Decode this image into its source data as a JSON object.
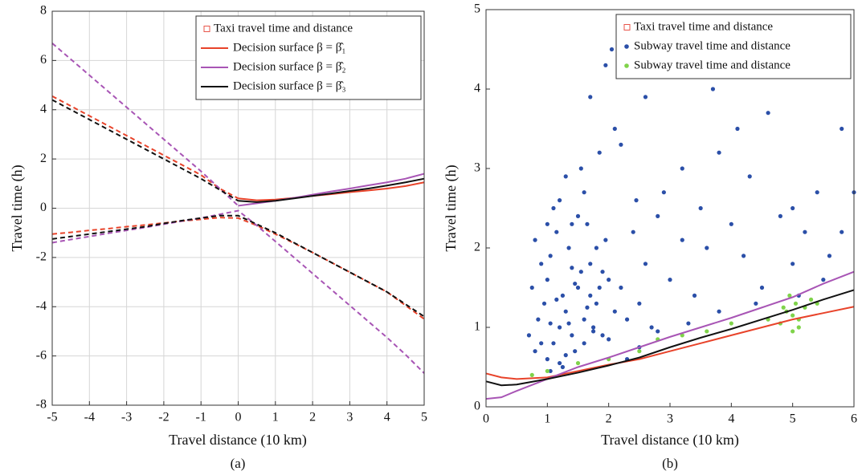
{
  "chart_data": [
    {
      "type": "line",
      "caption": "(a)",
      "xlabel": "Travel distance (10 km)",
      "ylabel": "Travel time (h)",
      "xlim": [
        -5,
        5
      ],
      "ylim": [
        -8,
        8
      ],
      "xticks": [
        -5,
        -4,
        -3,
        -2,
        -1,
        0,
        1,
        2,
        3,
        4,
        5
      ],
      "yticks": [
        -8,
        -6,
        -4,
        -2,
        0,
        2,
        4,
        6,
        8
      ],
      "grid": true,
      "legend": "upper right",
      "x": [
        -5,
        -4.5,
        -4,
        -3.5,
        -3,
        -2.5,
        -2,
        -1.5,
        -1,
        -0.5,
        0,
        0.5,
        1,
        1.5,
        2,
        2.5,
        3,
        3.5,
        4,
        4.5,
        5
      ],
      "series": [
        {
          "name": "Taxi travel time and distance",
          "color": "#e8544a",
          "marker": "square"
        },
        {
          "name": "Decision surface β = β̂₁",
          "color": "#e8432a",
          "upper": [
            4.55,
            4.15,
            3.75,
            3.35,
            2.95,
            2.55,
            2.15,
            1.75,
            1.35,
            0.8,
            0.4,
            0.32,
            0.35,
            0.42,
            0.5,
            0.57,
            0.65,
            0.72,
            0.8,
            0.9,
            1.05
          ],
          "lower": [
            -1.05,
            -0.98,
            -0.9,
            -0.83,
            -0.75,
            -0.68,
            -0.6,
            -0.52,
            -0.45,
            -0.38,
            -0.4,
            -0.7,
            -1.05,
            -1.42,
            -1.8,
            -2.2,
            -2.6,
            -3.0,
            -3.4,
            -3.95,
            -4.5
          ]
        },
        {
          "name": "Decision surface β = β̂₂",
          "color": "#a855b5",
          "upper": [
            6.7,
            6.05,
            5.4,
            4.75,
            4.1,
            3.45,
            2.8,
            2.15,
            1.5,
            0.8,
            0.1,
            0.2,
            0.3,
            0.42,
            0.55,
            0.68,
            0.8,
            0.93,
            1.05,
            1.2,
            1.4
          ],
          "lower": [
            -1.4,
            -1.27,
            -1.15,
            -1.02,
            -0.9,
            -0.78,
            -0.65,
            -0.52,
            -0.4,
            -0.25,
            -0.1,
            -0.7,
            -1.35,
            -2.0,
            -2.65,
            -3.3,
            -3.95,
            -4.6,
            -5.25,
            -5.95,
            -6.7
          ]
        },
        {
          "name": "Decision surface β = β̂₃",
          "color": "#111111",
          "upper": [
            4.4,
            4.0,
            3.6,
            3.2,
            2.8,
            2.4,
            2.0,
            1.6,
            1.2,
            0.75,
            0.3,
            0.25,
            0.3,
            0.4,
            0.5,
            0.6,
            0.7,
            0.8,
            0.92,
            1.05,
            1.2
          ],
          "lower": [
            -1.25,
            -1.15,
            -1.05,
            -0.95,
            -0.85,
            -0.75,
            -0.62,
            -0.5,
            -0.4,
            -0.3,
            -0.3,
            -0.65,
            -1.0,
            -1.4,
            -1.8,
            -2.2,
            -2.6,
            -3.0,
            -3.4,
            -3.9,
            -4.4
          ]
        }
      ]
    },
    {
      "type": "scatter",
      "caption": "(b)",
      "xlabel": "Travel distance (10 km)",
      "ylabel": "Travel time (h)",
      "xlim": [
        0,
        6
      ],
      "ylim": [
        0,
        5
      ],
      "xticks": [
        0,
        1,
        2,
        3,
        4,
        5,
        6
      ],
      "yticks": [
        0,
        1,
        2,
        3,
        4,
        5
      ],
      "grid": false,
      "legend": "upper right",
      "series": [
        {
          "name": "Taxi travel time and distance",
          "color": "#e8544a",
          "marker": "square"
        },
        {
          "name": "Subway travel time and distance",
          "color": "#2b4fa8",
          "marker": "dot",
          "x": [
            1.0,
            1.1,
            1.2,
            1.3,
            1.4,
            1.5,
            1.6,
            1.7,
            1.8,
            1.9,
            2.0,
            2.1,
            1.05,
            1.15,
            1.25,
            1.35,
            1.45,
            1.55,
            1.65,
            1.75,
            1.85,
            1.95,
            0.9,
            0.95,
            0.85,
            0.8,
            0.75,
            0.7,
            1.0,
            1.1,
            1.2,
            1.3,
            1.4,
            1.5,
            1.6,
            1.7,
            1.8,
            1.9,
            2.0,
            2.2,
            2.3,
            2.4,
            2.5,
            2.6,
            2.7,
            2.8,
            3.0,
            3.2,
            3.4,
            3.6,
            3.8,
            4.0,
            4.2,
            4.5,
            4.8,
            5.0,
            5.2,
            5.5,
            5.8,
            6.0,
            2.05,
            1.95,
            1.7,
            2.1,
            2.2,
            2.6,
            3.7,
            4.6,
            5.8,
            3.2,
            3.8,
            4.1,
            2.9,
            4.3,
            5.0,
            5.4,
            1.3,
            1.55,
            1.6,
            1.85,
            2.45,
            3.5,
            1.4,
            1.2,
            1.0,
            0.9,
            0.8,
            1.05,
            1.25,
            2.3,
            2.5,
            2.8,
            3.3,
            4.4,
            5.1,
            5.6,
            1.65,
            1.35,
            1.15,
            1.45,
            1.75,
            1.05
          ],
          "values": [
            0.6,
            0.8,
            1.0,
            1.2,
            0.9,
            1.5,
            1.1,
            1.8,
            1.3,
            0.9,
            1.6,
            1.2,
            1.9,
            2.2,
            1.4,
            2.0,
            0.7,
            1.7,
            2.3,
            1.0,
            1.5,
            2.1,
            0.8,
            1.3,
            1.1,
            0.7,
            1.5,
            0.9,
            1.6,
            2.5,
            0.55,
            0.65,
            1.75,
            2.4,
            0.8,
            1.4,
            2.0,
            1.7,
            0.85,
            1.5,
            1.1,
            2.2,
            1.3,
            1.8,
            1.0,
            2.4,
            1.6,
            2.1,
            1.4,
            2.0,
            1.2,
            2.3,
            1.9,
            1.5,
            2.4,
            1.8,
            2.2,
            1.6,
            2.2,
            2.7,
            4.5,
            4.3,
            3.9,
            3.5,
            3.3,
            3.9,
            4.0,
            3.7,
            3.5,
            3.0,
            3.2,
            3.5,
            2.7,
            2.9,
            2.5,
            2.7,
            2.9,
            3.0,
            2.7,
            3.2,
            2.6,
            2.5,
            2.3,
            2.6,
            2.3,
            1.8,
            2.1,
            0.45,
            0.5,
            0.6,
            0.75,
            0.95,
            1.05,
            1.3,
            1.4,
            1.9,
            1.25,
            1.05,
            1.35,
            1.55,
            0.95,
            1.05
          ]
        },
        {
          "name": "Subway travel time and distance",
          "color": "#7fd34a",
          "marker": "dot",
          "x": [
            0.75,
            1.0,
            1.5,
            2.0,
            2.5,
            2.8,
            3.2,
            3.6,
            4.0,
            4.6,
            4.8,
            4.9,
            5.0,
            5.0,
            5.05,
            5.1,
            5.2,
            5.3,
            5.4,
            4.95,
            5.1,
            4.85
          ],
          "values": [
            0.4,
            0.45,
            0.55,
            0.6,
            0.7,
            0.85,
            0.9,
            0.95,
            1.05,
            1.1,
            1.05,
            1.2,
            1.15,
            0.95,
            1.3,
            1.0,
            1.25,
            1.35,
            1.3,
            1.4,
            1.1,
            1.25
          ]
        }
      ],
      "curves": {
        "x": [
          0,
          0.25,
          0.5,
          1,
          1.5,
          2,
          2.5,
          3,
          3.5,
          4,
          4.5,
          5,
          5.5,
          6
        ],
        "lines": [
          {
            "color": "#e8432a",
            "values": [
              0.42,
              0.37,
              0.35,
              0.37,
              0.45,
              0.53,
              0.6,
              0.7,
              0.8,
              0.9,
              1.0,
              1.1,
              1.18,
              1.26
            ]
          },
          {
            "color": "#a855b5",
            "values": [
              0.1,
              0.12,
              0.2,
              0.35,
              0.5,
              0.62,
              0.75,
              0.88,
              1.0,
              1.12,
              1.25,
              1.38,
              1.55,
              1.7
            ]
          },
          {
            "color": "#111111",
            "values": [
              0.32,
              0.27,
              0.28,
              0.35,
              0.43,
              0.52,
              0.62,
              0.75,
              0.87,
              0.98,
              1.1,
              1.22,
              1.35,
              1.47
            ]
          }
        ]
      }
    }
  ]
}
